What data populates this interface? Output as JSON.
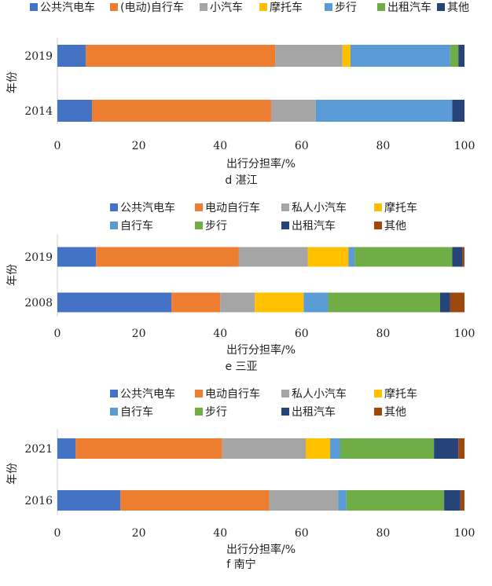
{
  "chart_data": [
    {
      "type": "bar",
      "orientation": "horizontal",
      "stacked": true,
      "title": "d 湛江",
      "xlabel": "出行分担率/%",
      "ylabel": "年份",
      "xlim": [
        0,
        100
      ],
      "xticks": [
        0,
        20,
        40,
        60,
        80,
        100
      ],
      "grid": false,
      "legend": "top",
      "categories": [
        "2019",
        "2014"
      ],
      "series": [
        {
          "name": "公共汽电车",
          "color": "#4472C4",
          "values": [
            7,
            8.5
          ]
        },
        {
          "name": "(电动)自行车",
          "color": "#ED7D31",
          "values": [
            46.5,
            44
          ]
        },
        {
          "name": "小汽车",
          "color": "#A5A5A5",
          "values": [
            16.5,
            11
          ]
        },
        {
          "name": "摩托车",
          "color": "#FFC000",
          "values": [
            2,
            0
          ]
        },
        {
          "name": "步行",
          "color": "#5B9BD5",
          "values": [
            24.5,
            33.5
          ]
        },
        {
          "name": "出租汽车",
          "color": "#70AD47",
          "values": [
            2,
            0
          ]
        },
        {
          "name": "其他",
          "color": "#264478",
          "values": [
            1.5,
            3
          ]
        }
      ]
    },
    {
      "type": "bar",
      "orientation": "horizontal",
      "stacked": true,
      "title": "e 三亚",
      "xlabel": "出行分担率/%",
      "ylabel": "年份",
      "xlim": [
        0,
        100
      ],
      "xticks": [
        0,
        20,
        40,
        60,
        80,
        100
      ],
      "grid": false,
      "legend": "top",
      "categories": [
        "2019",
        "2008"
      ],
      "series": [
        {
          "name": "公共汽电车",
          "color": "#4472C4",
          "values": [
            9.5,
            28
          ]
        },
        {
          "name": "电动自行车",
          "color": "#ED7D31",
          "values": [
            35,
            12
          ]
        },
        {
          "name": "私人小汽车",
          "color": "#A5A5A5",
          "values": [
            17,
            8.5
          ]
        },
        {
          "name": "摩托车",
          "color": "#FFC000",
          "values": [
            10,
            12
          ]
        },
        {
          "name": "自行车",
          "color": "#5B9BD5",
          "values": [
            1.5,
            6
          ]
        },
        {
          "name": "步行",
          "color": "#70AD47",
          "values": [
            24,
            27.5
          ]
        },
        {
          "name": "出租汽车",
          "color": "#264478",
          "values": [
            2.5,
            2.5
          ]
        },
        {
          "name": "其他",
          "color": "#9E480E",
          "values": [
            0.5,
            3.5
          ]
        }
      ]
    },
    {
      "type": "bar",
      "orientation": "horizontal",
      "stacked": true,
      "title": "f 南宁",
      "xlabel": "出行分担率/%",
      "ylabel": "年份",
      "xlim": [
        0,
        100
      ],
      "xticks": [
        0,
        20,
        40,
        60,
        80,
        100
      ],
      "grid": false,
      "legend": "top",
      "categories": [
        "2021",
        "2016"
      ],
      "series": [
        {
          "name": "公共汽电车",
          "color": "#4472C4",
          "values": [
            4.5,
            15.5
          ]
        },
        {
          "name": "电动自行车",
          "color": "#ED7D31",
          "values": [
            36,
            36.5
          ]
        },
        {
          "name": "私人小汽车",
          "color": "#A5A5A5",
          "values": [
            20.5,
            17
          ]
        },
        {
          "name": "摩托车",
          "color": "#FFC000",
          "values": [
            6,
            0
          ]
        },
        {
          "name": "自行车",
          "color": "#5B9BD5",
          "values": [
            2.5,
            2
          ]
        },
        {
          "name": "步行",
          "color": "#70AD47",
          "values": [
            23,
            24
          ]
        },
        {
          "name": "出租汽车",
          "color": "#264478",
          "values": [
            6,
            4
          ]
        },
        {
          "name": "其他",
          "color": "#9E480E",
          "values": [
            1.5,
            1
          ]
        }
      ]
    }
  ]
}
